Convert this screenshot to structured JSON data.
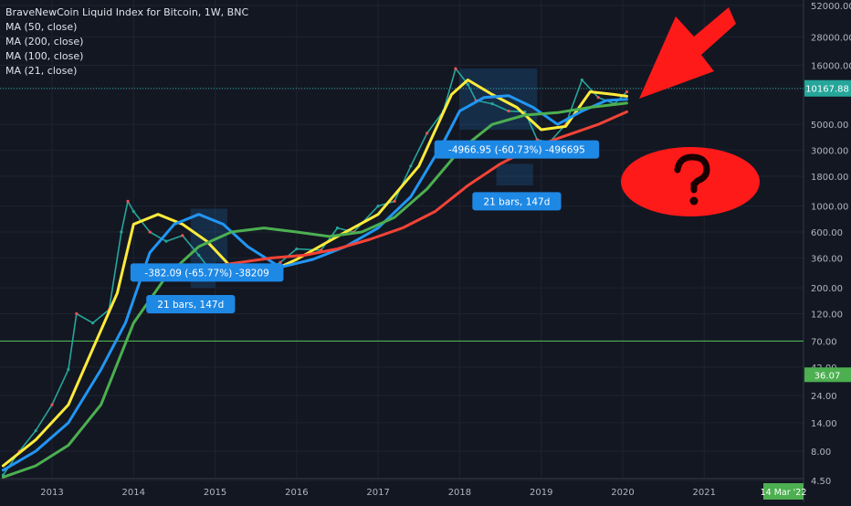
{
  "chart_data": {
    "type": "line",
    "title": "BraveNewCoin Liquid Index for Bitcoin, 1W, BNC",
    "legend": [
      "MA (50, close)",
      "MA (200, close)",
      "MA (100, close)",
      "MA (21, close)"
    ],
    "scale": "log",
    "ylim": [
      4.5,
      52000
    ],
    "xlim": [
      2012.4,
      2022.2
    ],
    "y_ticks": [
      "52000.00",
      "28000.00",
      "16000.00",
      "10000.00",
      "5000.00",
      "3000.00",
      "1800.00",
      "1000.00",
      "600.00",
      "360.00",
      "200.00",
      "120.00",
      "70.00",
      "42.00",
      "24.00",
      "14.00",
      "8.00",
      "4.50"
    ],
    "x_ticks": [
      "2013",
      "2014",
      "2015",
      "2016",
      "2017",
      "2018",
      "2019",
      "2020",
      "2021"
    ],
    "last_price_label": "10167.88",
    "horizontal_level_label": "36.07",
    "date_label": "14 Mar '22",
    "series": [
      {
        "role": "price",
        "color": "#26a69a",
        "x": [
          2012.4,
          2012.6,
          2012.8,
          2013.0,
          2013.2,
          2013.3,
          2013.5,
          2013.7,
          2013.85,
          2013.93,
          2014.0,
          2014.2,
          2014.4,
          2014.6,
          2014.8,
          2015.0,
          2015.2,
          2015.4,
          2015.6,
          2015.8,
          2016.0,
          2016.3,
          2016.5,
          2016.7,
          2017.0,
          2017.2,
          2017.4,
          2017.6,
          2017.8,
          2017.95,
          2018.1,
          2018.2,
          2018.4,
          2018.6,
          2018.8,
          2018.95,
          2019.1,
          2019.3,
          2019.5,
          2019.7,
          2019.9,
          2020.05
        ],
        "y": [
          5,
          8,
          12,
          20,
          40,
          120,
          100,
          130,
          600,
          1100,
          900,
          600,
          500,
          560,
          380,
          250,
          270,
          240,
          280,
          330,
          430,
          420,
          650,
          600,
          1000,
          1100,
          2200,
          4200,
          6500,
          15000,
          11000,
          8000,
          7500,
          6500,
          6400,
          3700,
          3500,
          5000,
          12000,
          8500,
          7500,
          9500
        ]
      },
      {
        "name": "MA (21, close)",
        "color": "#ffeb3b",
        "x": [
          2012.4,
          2012.8,
          2013.2,
          2013.5,
          2013.8,
          2014.0,
          2014.3,
          2014.6,
          2014.9,
          2015.2,
          2015.6,
          2016.0,
          2016.5,
          2017.0,
          2017.5,
          2017.9,
          2018.1,
          2018.4,
          2018.7,
          2019.0,
          2019.3,
          2019.6,
          2019.9,
          2020.05
        ],
        "y": [
          6,
          10,
          20,
          60,
          180,
          700,
          850,
          700,
          500,
          300,
          260,
          350,
          550,
          850,
          2200,
          9000,
          12000,
          9000,
          7000,
          4500,
          4800,
          9500,
          9000,
          8700
        ]
      },
      {
        "name": "MA (50, close)",
        "color": "#2196f3",
        "x": [
          2012.4,
          2012.8,
          2013.2,
          2013.6,
          2013.9,
          2014.2,
          2014.5,
          2014.8,
          2015.1,
          2015.4,
          2015.8,
          2016.2,
          2016.6,
          2017.0,
          2017.4,
          2017.8,
          2018.0,
          2018.3,
          2018.6,
          2018.9,
          2019.2,
          2019.5,
          2019.8,
          2020.05
        ],
        "y": [
          5.5,
          8,
          14,
          40,
          100,
          400,
          700,
          850,
          700,
          450,
          300,
          350,
          450,
          650,
          1200,
          3500,
          6500,
          8500,
          8800,
          7000,
          5000,
          6500,
          8000,
          8200
        ]
      },
      {
        "name": "MA (100, close)",
        "color": "#4caf50",
        "x": [
          2012.4,
          2012.8,
          2013.2,
          2013.6,
          2014.0,
          2014.4,
          2014.8,
          2015.2,
          2015.6,
          2016.0,
          2016.4,
          2016.8,
          2017.2,
          2017.6,
          2018.0,
          2018.4,
          2018.8,
          2019.2,
          2019.6,
          2020.05
        ],
        "y": [
          4.8,
          6,
          9,
          20,
          100,
          250,
          450,
          600,
          650,
          600,
          550,
          600,
          800,
          1400,
          3000,
          5000,
          6000,
          6300,
          7000,
          7600
        ]
      },
      {
        "name": "MA (200, close)",
        "color": "#f44336",
        "x": [
          2014.9,
          2015.3,
          2015.7,
          2016.1,
          2016.5,
          2016.9,
          2017.3,
          2017.7,
          2018.1,
          2018.5,
          2018.9,
          2019.3,
          2019.7,
          2020.05
        ],
        "y": [
          300,
          330,
          360,
          380,
          430,
          520,
          650,
          900,
          1500,
          2300,
          3200,
          4000,
          5000,
          6400
        ]
      }
    ],
    "annotations": [
      {
        "text": "-382.09 (-65.77%) -38209",
        "x": 2014.9,
        "y": 270
      },
      {
        "text": "21 bars, 147d",
        "x": 2014.7,
        "y": 145
      },
      {
        "text": "-4966.95 (-60.73%) -496695",
        "x": 2018.7,
        "y": 3050
      },
      {
        "text": "21 bars, 147d",
        "x": 2018.7,
        "y": 1100
      }
    ]
  }
}
